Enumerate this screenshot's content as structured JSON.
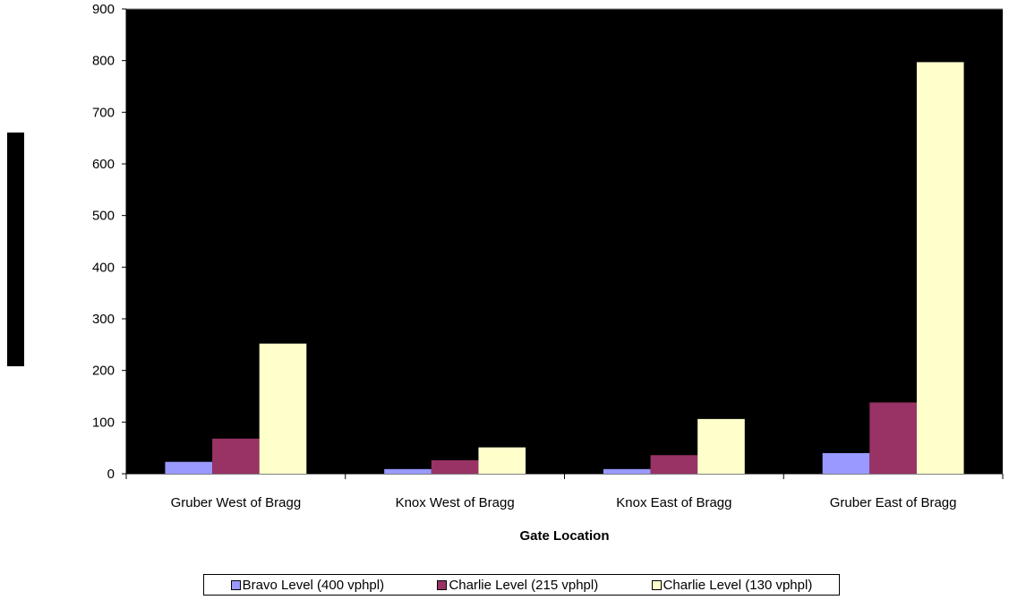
{
  "chart_data": {
    "type": "bar",
    "title": "",
    "xlabel": "Gate Location",
    "ylabel": "",
    "ylim": [
      0,
      900
    ],
    "yticks": [
      "0",
      "100",
      "200",
      "300",
      "400",
      "500",
      "600",
      "700",
      "800",
      "900"
    ],
    "categories": [
      "Gruber West of Bragg",
      "Knox West of Bragg",
      "Knox East of Bragg",
      "Gruber East of Bragg"
    ],
    "series": [
      {
        "name": "Bravo Level (400 vphpl)",
        "color": "#9999ff",
        "values": [
          23,
          9,
          9,
          40
        ]
      },
      {
        "name": "Charlie Level (215 vphpl)",
        "color": "#993366",
        "values": [
          68,
          26,
          36,
          138
        ]
      },
      {
        "name": "Charlie Level (130 vphpl)",
        "color": "#ffffcc",
        "values": [
          252,
          51,
          106,
          797
        ]
      }
    ],
    "plot_background": "#000000",
    "grid": false,
    "legend_position": "bottom"
  }
}
